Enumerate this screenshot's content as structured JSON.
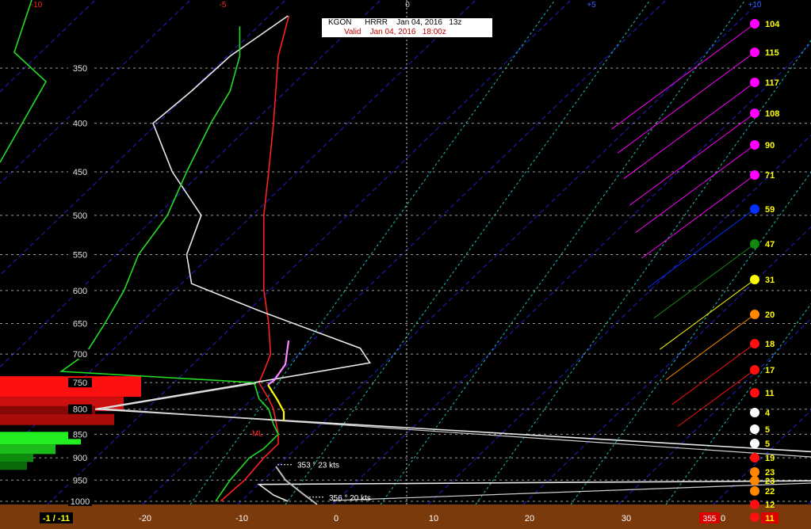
{
  "header": {
    "station": "KGON",
    "model": "HRRR",
    "run_date": "Jan 04, 2016",
    "run_hour": "13z",
    "valid_label": "Valid",
    "valid_time": "Jan 04, 2016   18:00z"
  },
  "colors": {
    "background": "#000000",
    "bottom_bar": "#7a3a0c",
    "temperature": "#ff2020",
    "dewpoint": "#e8e8e8",
    "wetbulb": "#22dd22",
    "diagonal_dashed": "#2020cc",
    "cyan_dashed": "#20bbbb"
  },
  "chart_data": {
    "type": "line",
    "title": "",
    "pressure_levels": [
      "350",
      "400",
      "450",
      "500",
      "550",
      "600",
      "650",
      "700",
      "750",
      "800",
      "850",
      "900",
      "950",
      "1000"
    ],
    "top_axis_ticks": [
      "-10",
      "-5",
      "0",
      "+5",
      "+10"
    ],
    "bottom_axis_ticks": [
      "-20",
      "-10",
      "0",
      "10",
      "20",
      "30"
    ],
    "bottom_labels": {
      "left_box": "-1 / -11",
      "wind_dir": "355",
      "zero": "0",
      "right_val": "11"
    },
    "series": [
      {
        "color": "#ff2020",
        "points": [
          [
            -4.9,
            300
          ],
          [
            -6.0,
            340
          ],
          [
            -6.5,
            400
          ],
          [
            -7.0,
            450
          ],
          [
            -7.5,
            500
          ],
          [
            -7.5,
            550
          ],
          [
            -7.5,
            600
          ],
          [
            -7.0,
            650
          ],
          [
            -6.8,
            700
          ],
          [
            -7.5,
            730
          ],
          [
            -8.0,
            750
          ],
          [
            -7.0,
            780
          ],
          [
            -6.5,
            800
          ],
          [
            -6.0,
            850
          ],
          [
            -6.0,
            870
          ],
          [
            -7.5,
            900
          ],
          [
            -9.5,
            950
          ],
          [
            -12.0,
            1000
          ]
        ]
      },
      {
        "color": "#e8e8e8",
        "points": [
          [
            -5.0,
            300
          ],
          [
            -11.0,
            340
          ],
          [
            -15.0,
            370
          ],
          [
            -19.0,
            400
          ],
          [
            -17.0,
            450
          ],
          [
            -14.0,
            500
          ],
          [
            -15.5,
            550
          ],
          [
            -15.0,
            590
          ],
          [
            -8.0,
            630
          ],
          [
            2.5,
            690
          ],
          [
            3.5,
            715
          ],
          [
            -8.5,
            750
          ],
          [
            -25.0,
            800
          ],
          [
            60.0,
            900
          ],
          [
            60.0,
            950
          ],
          [
            -8.0,
            960
          ],
          [
            -6.5,
            985
          ],
          [
            -5.0,
            1000
          ]
        ]
      },
      {
        "color": "#22dd22",
        "points": [
          [
            -10.0,
            310
          ],
          [
            -10.0,
            340
          ],
          [
            -11.0,
            370
          ],
          [
            -13.0,
            400
          ],
          [
            -15.5,
            450
          ],
          [
            -17.5,
            500
          ],
          [
            -20.5,
            550
          ],
          [
            -22.0,
            600
          ],
          [
            -24.0,
            650
          ],
          [
            -26.0,
            700
          ],
          [
            -28.5,
            730
          ],
          [
            -8.5,
            750
          ],
          [
            -8.0,
            780
          ],
          [
            -7.0,
            800
          ],
          [
            -6.5,
            830
          ],
          [
            -6.0,
            850
          ],
          [
            -7.5,
            880
          ],
          [
            -9.0,
            900
          ],
          [
            -11.0,
            950
          ],
          [
            -12.5,
            1000
          ]
        ]
      }
    ],
    "annotations": [
      {
        "text": "353 ° 23 kts",
        "pressure": 915
      },
      {
        "text": "356 ° 20 kts",
        "pressure": 990
      },
      {
        "text": "ML",
        "pressure": 847
      }
    ],
    "wind_profile": [
      {
        "speed": "104",
        "color": "#ff00ff"
      },
      {
        "speed": "115",
        "color": "#ff00ff"
      },
      {
        "speed": "117",
        "color": "#ff00ff"
      },
      {
        "speed": "108",
        "color": "#ff00ff"
      },
      {
        "speed": "90",
        "color": "#ff00ff"
      },
      {
        "speed": "71",
        "color": "#ff00ff"
      },
      {
        "speed": "59",
        "color": "#0030ff"
      },
      {
        "speed": "47",
        "color": "#118811"
      },
      {
        "speed": "31",
        "color": "#ffff00"
      },
      {
        "speed": "20",
        "color": "#ff8800"
      },
      {
        "speed": "18",
        "color": "#ff1010"
      },
      {
        "speed": "17",
        "color": "#ff1010"
      },
      {
        "speed": "11",
        "color": "#ff1010"
      },
      {
        "speed": "4",
        "color": "#ffffff"
      },
      {
        "speed": "5",
        "color": "#ffffff"
      },
      {
        "speed": "5",
        "color": "#ffffff"
      },
      {
        "speed": "19",
        "color": "#ff1010"
      },
      {
        "speed": "23",
        "color": "#ff8800"
      },
      {
        "speed": "23",
        "color": "#ff8800"
      },
      {
        "speed": "22",
        "color": "#ff8800"
      },
      {
        "speed": "12",
        "color": "#ff1010"
      },
      {
        "speed": "11",
        "color": "#ff1010"
      }
    ],
    "side_bars_red": [
      "750",
      "800"
    ],
    "side_bars_green": [
      "850",
      "900"
    ]
  }
}
